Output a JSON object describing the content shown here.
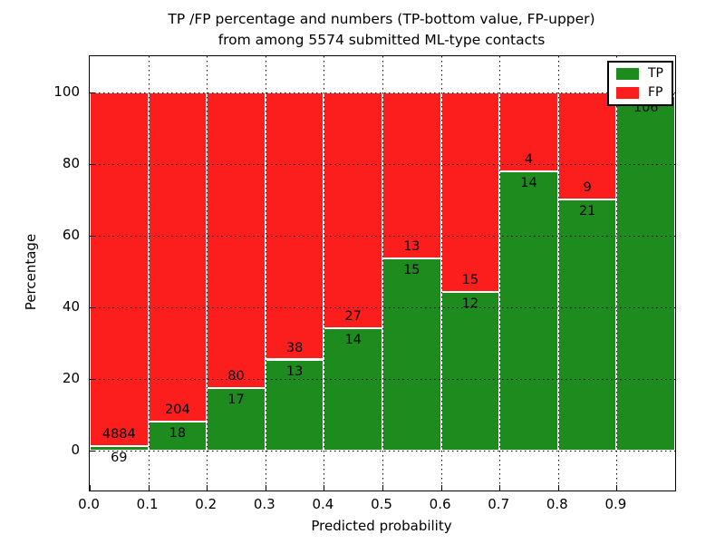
{
  "title": {
    "line1": "TP /FP percentage and numbers (TP-bottom value, FP-upper)",
    "line2": "from among 5574 submitted ML-type contacts"
  },
  "axes": {
    "xlabel": "Predicted probability",
    "ylabel": "Percentage",
    "x_ticks": [
      "0.0",
      "0.1",
      "0.2",
      "0.3",
      "0.4",
      "0.5",
      "0.6",
      "0.7",
      "0.8",
      "0.9"
    ],
    "y_ticks": [
      "0",
      "20",
      "40",
      "60",
      "80",
      "100"
    ],
    "y_tick_values": [
      0,
      20,
      40,
      60,
      80,
      100
    ],
    "xlim": [
      0,
      1
    ],
    "ylim": [
      -11,
      110
    ],
    "grid": true
  },
  "legend": {
    "position": "upper right",
    "items": [
      {
        "label": "TP",
        "color": "#1e8b1e"
      },
      {
        "label": "FP",
        "color": "#fc1d1d"
      }
    ]
  },
  "colors": {
    "tp": "#1e8b1e",
    "fp": "#fc1d1d",
    "bar_edge": "#ffffff",
    "text": "#000000"
  },
  "chart_data": {
    "type": "bar",
    "stacked": true,
    "normalized_to": 100,
    "title": "TP /FP percentage and numbers (TP-bottom value, FP-upper) from among 5574 submitted ML-type contacts",
    "xlabel": "Predicted probability",
    "ylabel": "Percentage",
    "legend_position": "upper right",
    "categories": [
      "0.0-0.1",
      "0.1-0.2",
      "0.2-0.3",
      "0.3-0.4",
      "0.4-0.5",
      "0.5-0.6",
      "0.6-0.7",
      "0.7-0.8",
      "0.8-0.9",
      "0.9-1.0"
    ],
    "series": [
      {
        "name": "TP",
        "counts": [
          69,
          18,
          17,
          13,
          14,
          15,
          12,
          14,
          21,
          106
        ]
      },
      {
        "name": "FP",
        "counts": [
          4884,
          204,
          80,
          38,
          27,
          13,
          15,
          4,
          9,
          null
        ]
      }
    ],
    "bins": [
      {
        "range": "0.0-0.1",
        "tp_label": "69",
        "fp_label": "4884",
        "tp_pct": 1.4
      },
      {
        "range": "0.1-0.2",
        "tp_label": "18",
        "fp_label": "204",
        "tp_pct": 8.1
      },
      {
        "range": "0.2-0.3",
        "tp_label": "17",
        "fp_label": "80",
        "tp_pct": 17.5
      },
      {
        "range": "0.3-0.4",
        "tp_label": "13",
        "fp_label": "38",
        "tp_pct": 25.5
      },
      {
        "range": "0.4-0.5",
        "tp_label": "14",
        "fp_label": "27",
        "tp_pct": 34.1
      },
      {
        "range": "0.5-0.6",
        "tp_label": "15",
        "fp_label": "13",
        "tp_pct": 53.6
      },
      {
        "range": "0.6-0.7",
        "tp_label": "12",
        "fp_label": "15",
        "tp_pct": 44.4
      },
      {
        "range": "0.7-0.8",
        "tp_label": "14",
        "fp_label": "4",
        "tp_pct": 77.8
      },
      {
        "range": "0.8-0.9",
        "tp_label": "21",
        "fp_label": "9",
        "tp_pct": 70.0
      },
      {
        "range": "0.9-1.0",
        "tp_label": "106",
        "fp_label": "",
        "tp_pct": 99.0
      }
    ]
  }
}
